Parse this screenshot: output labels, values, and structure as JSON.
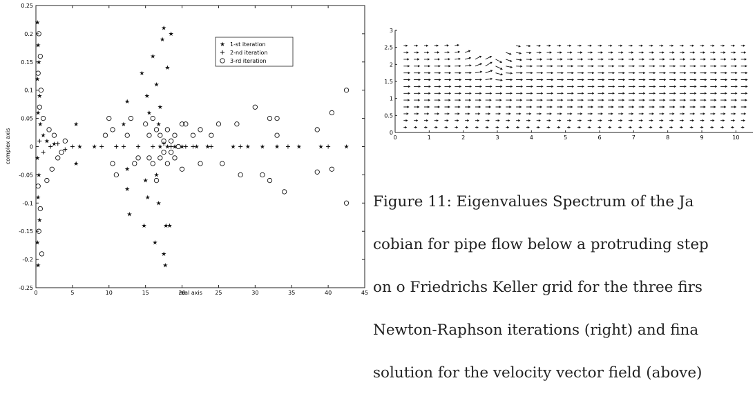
{
  "chart_data": [
    {
      "type": "scatter",
      "title": "",
      "xlabel": "real axis",
      "ylabel": "complex axis",
      "xlim": [
        0,
        45
      ],
      "ylim": [
        -0.25,
        0.25
      ],
      "xticks": [
        "0",
        "5",
        "10",
        "15",
        "20",
        "25",
        "30",
        "35",
        "40",
        "45"
      ],
      "yticks": [
        "0.25",
        "0.2",
        "0.15",
        "0.1",
        "0.05",
        "0",
        "-0.05",
        "-0.1",
        "-0.15",
        "-0.2",
        "-0.25"
      ],
      "legend_position": "top-right",
      "grid": false,
      "series": [
        {
          "name": "1-st iteration",
          "marker": "star",
          "points": [
            [
              0.2,
              0.22
            ],
            [
              0.3,
              0.18
            ],
            [
              0.4,
              0.15
            ],
            [
              0.2,
              0.12
            ],
            [
              0.5,
              0.09
            ],
            [
              0.3,
              0.06
            ],
            [
              0.6,
              0.04
            ],
            [
              1.0,
              0.02
            ],
            [
              1.5,
              0.01
            ],
            [
              2.5,
              0.005
            ],
            [
              0.2,
              -0.02
            ],
            [
              0.4,
              -0.05
            ],
            [
              0.3,
              -0.09
            ],
            [
              0.5,
              -0.13
            ],
            [
              0.2,
              -0.17
            ],
            [
              0.3,
              -0.21
            ],
            [
              5.5,
              0.04
            ],
            [
              5.5,
              -0.03
            ],
            [
              6.0,
              0.0
            ],
            [
              8.0,
              0.0
            ],
            [
              12.5,
              0.08
            ],
            [
              12.0,
              0.04
            ],
            [
              12.5,
              -0.04
            ],
            [
              12.5,
              -0.075
            ],
            [
              12.8,
              -0.12
            ],
            [
              14.5,
              0.13
            ],
            [
              15.2,
              0.09
            ],
            [
              15.5,
              0.06
            ],
            [
              15.0,
              -0.06
            ],
            [
              15.3,
              -0.09
            ],
            [
              14.8,
              -0.14
            ],
            [
              16.0,
              0.16
            ],
            [
              16.5,
              0.11
            ],
            [
              17.0,
              0.07
            ],
            [
              16.8,
              0.04
            ],
            [
              16.5,
              -0.05
            ],
            [
              16.8,
              -0.1
            ],
            [
              16.3,
              -0.17
            ],
            [
              17.5,
              0.21
            ],
            [
              17.3,
              0.19
            ],
            [
              18.5,
              0.2
            ],
            [
              18.0,
              0.14
            ],
            [
              17.8,
              -0.14
            ],
            [
              17.5,
              -0.19
            ],
            [
              17.7,
              -0.21
            ],
            [
              18.3,
              -0.14
            ],
            [
              17.0,
              0.0
            ],
            [
              18.0,
              0.0
            ],
            [
              19.0,
              0.0
            ],
            [
              20.0,
              0.0
            ],
            [
              22.0,
              0.0
            ],
            [
              23.5,
              0.0
            ],
            [
              27.0,
              0.0
            ],
            [
              29.0,
              0.0
            ],
            [
              31.0,
              0.0
            ],
            [
              33.0,
              0.0
            ],
            [
              36.0,
              0.0
            ],
            [
              39.0,
              0.0
            ],
            [
              42.5,
              0.0
            ]
          ]
        },
        {
          "name": "2-nd iteration",
          "marker": "plus",
          "points": [
            [
              0.5,
              0.01
            ],
            [
              1.0,
              -0.01
            ],
            [
              2.0,
              0.0
            ],
            [
              3.0,
              0.005
            ],
            [
              4.0,
              -0.005
            ],
            [
              5.0,
              0.0
            ],
            [
              9.0,
              0.0
            ],
            [
              11.0,
              0.0
            ],
            [
              12.0,
              0.0
            ],
            [
              14.0,
              0.0
            ],
            [
              16.0,
              0.0
            ],
            [
              17.5,
              0.005
            ],
            [
              18.5,
              0.0
            ],
            [
              20.5,
              0.0
            ],
            [
              21.5,
              0.0
            ],
            [
              24.0,
              0.0
            ],
            [
              28.0,
              0.0
            ],
            [
              34.5,
              0.0
            ],
            [
              40.0,
              0.0
            ]
          ]
        },
        {
          "name": "3-rd iteration",
          "marker": "circle",
          "points": [
            [
              0.4,
              0.2
            ],
            [
              0.6,
              0.16
            ],
            [
              0.3,
              0.13
            ],
            [
              0.7,
              0.1
            ],
            [
              0.5,
              0.07
            ],
            [
              0.3,
              -0.07
            ],
            [
              0.6,
              -0.11
            ],
            [
              0.4,
              -0.15
            ],
            [
              0.8,
              -0.19
            ],
            [
              1.0,
              0.05
            ],
            [
              1.8,
              0.03
            ],
            [
              2.5,
              0.02
            ],
            [
              3.0,
              -0.02
            ],
            [
              2.2,
              -0.04
            ],
            [
              1.5,
              -0.06
            ],
            [
              4.0,
              0.01
            ],
            [
              3.5,
              -0.01
            ],
            [
              10.0,
              0.05
            ],
            [
              10.5,
              0.03
            ],
            [
              10.5,
              -0.03
            ],
            [
              11.0,
              -0.05
            ],
            [
              9.5,
              0.02
            ],
            [
              12.5,
              0.02
            ],
            [
              13.0,
              0.05
            ],
            [
              13.5,
              -0.03
            ],
            [
              14.0,
              -0.02
            ],
            [
              15.0,
              0.04
            ],
            [
              15.5,
              0.02
            ],
            [
              15.5,
              -0.02
            ],
            [
              16.0,
              0.05
            ],
            [
              16.5,
              0.03
            ],
            [
              16.0,
              -0.03
            ],
            [
              16.5,
              -0.06
            ],
            [
              17.0,
              0.02
            ],
            [
              17.0,
              -0.02
            ],
            [
              17.5,
              0.01
            ],
            [
              17.5,
              -0.01
            ],
            [
              18.0,
              0.03
            ],
            [
              18.0,
              -0.03
            ],
            [
              18.5,
              0.01
            ],
            [
              18.5,
              -0.01
            ],
            [
              19.0,
              0.02
            ],
            [
              19.0,
              -0.02
            ],
            [
              19.5,
              0.0
            ],
            [
              20.0,
              0.04
            ],
            [
              20.5,
              0.04
            ],
            [
              20.0,
              -0.04
            ],
            [
              21.5,
              0.02
            ],
            [
              22.5,
              0.03
            ],
            [
              22.5,
              -0.03
            ],
            [
              24.0,
              0.02
            ],
            [
              25.0,
              0.04
            ],
            [
              25.5,
              -0.03
            ],
            [
              27.5,
              0.04
            ],
            [
              28.0,
              -0.05
            ],
            [
              30.0,
              0.07
            ],
            [
              31.0,
              -0.05
            ],
            [
              32.0,
              0.05
            ],
            [
              32.0,
              -0.06
            ],
            [
              33.0,
              0.05
            ],
            [
              33.0,
              0.02
            ],
            [
              34.0,
              -0.08
            ],
            [
              38.5,
              0.03
            ],
            [
              38.5,
              -0.045
            ],
            [
              40.5,
              0.06
            ],
            [
              40.5,
              -0.04
            ],
            [
              42.5,
              0.1
            ],
            [
              42.5,
              -0.1
            ]
          ]
        }
      ]
    },
    {
      "type": "quiver",
      "title": "",
      "xlabel": "",
      "ylabel": "",
      "xlim": [
        0,
        10.5
      ],
      "ylim": [
        0,
        3
      ],
      "xticks": [
        "0",
        "1",
        "2",
        "3",
        "4",
        "5",
        "6",
        "7",
        "8",
        "9",
        "10"
      ],
      "yticks": [
        "3",
        "2.5",
        "2",
        "1.5",
        "1",
        "0.5",
        "0"
      ],
      "grid": false,
      "field_description": "velocity vectors pointing right; bump dip around x=2.5, y=2.0-2.6"
    }
  ],
  "caption": {
    "lines": [
      "Figure 11: Eigenvalues Spectrum of the Ja",
      "cobian for pipe flow below a protruding step",
      "on o Friedrichs Keller grid for the three firs",
      "Newton-Raphson iterations (right) and fina",
      "solution for the velocity vector field (above)"
    ]
  }
}
